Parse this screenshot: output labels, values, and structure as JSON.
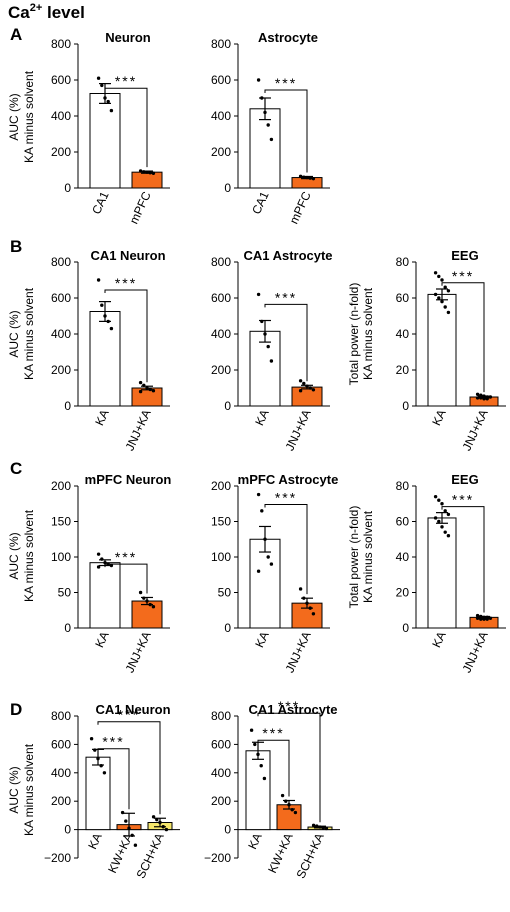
{
  "figure": {
    "title": "Ca",
    "title_sup": "2+",
    "title_suffix": " level"
  },
  "colors": {
    "kA": "#ffffff",
    "treated": "#f36b1c",
    "sch": "#f5e66b",
    "stroke": "#000000"
  },
  "sections": [
    {
      "label": "A",
      "ylabel1": "AUC (%)",
      "ylabel2": "KA minus solvent"
    },
    {
      "label": "B",
      "ylabel1": "AUC (%)",
      "ylabel2": "KA minus solvent"
    },
    {
      "label": "C",
      "ylabel1": "AUC (%)",
      "ylabel2": "KA minus solvent"
    },
    {
      "label": "D",
      "ylabel1": "AUC (%)",
      "ylabel2": "KA minus solvent"
    }
  ],
  "chart_data": [
    {
      "id": "A1",
      "type": "bar",
      "title": "Neuron",
      "categories": [
        "CA1",
        "mPFC"
      ],
      "colors": [
        "#ffffff",
        "#f36b1c"
      ],
      "values": [
        525,
        88
      ],
      "errors": [
        55,
        6
      ],
      "ylim": [
        0,
        800
      ],
      "yticks": [
        0,
        200,
        400,
        600,
        800
      ],
      "points": [
        [
          610,
          570,
          500,
          480,
          430
        ],
        [
          95,
          90,
          88,
          85,
          82
        ]
      ],
      "sig": [
        {
          "from": 0,
          "to": 1,
          "label": "***"
        }
      ]
    },
    {
      "id": "A2",
      "type": "bar",
      "title": "Astrocyte",
      "categories": [
        "CA1",
        "mPFC"
      ],
      "colors": [
        "#ffffff",
        "#f36b1c"
      ],
      "values": [
        440,
        58
      ],
      "errors": [
        60,
        6
      ],
      "ylim": [
        0,
        800
      ],
      "yticks": [
        0,
        200,
        400,
        600,
        800
      ],
      "points": [
        [
          600,
          500,
          420,
          350,
          270
        ],
        [
          65,
          60,
          58,
          55,
          52
        ]
      ],
      "sig": [
        {
          "from": 0,
          "to": 1,
          "label": "***"
        }
      ]
    },
    {
      "id": "B1",
      "type": "bar",
      "title": "CA1 Neuron",
      "categories": [
        "KA",
        "JNJ+KA"
      ],
      "colors": [
        "#ffffff",
        "#f36b1c"
      ],
      "values": [
        525,
        100
      ],
      "errors": [
        55,
        10
      ],
      "ylim": [
        0,
        800
      ],
      "yticks": [
        0,
        200,
        400,
        600,
        800
      ],
      "points": [
        [
          700,
          560,
          500,
          470,
          430
        ],
        [
          130,
          115,
          100,
          92,
          85,
          80
        ]
      ],
      "sig": [
        {
          "from": 0,
          "to": 1,
          "label": "***"
        }
      ]
    },
    {
      "id": "B2",
      "type": "bar",
      "title": "CA1 Astrocyte",
      "categories": [
        "KA",
        "JNJ+KA"
      ],
      "colors": [
        "#ffffff",
        "#f36b1c"
      ],
      "values": [
        415,
        105
      ],
      "errors": [
        60,
        10
      ],
      "ylim": [
        0,
        800
      ],
      "yticks": [
        0,
        200,
        400,
        600,
        800
      ],
      "points": [
        [
          620,
          470,
          400,
          330,
          250
        ],
        [
          140,
          125,
          110,
          100,
          90,
          85
        ]
      ],
      "sig": [
        {
          "from": 0,
          "to": 1,
          "label": "***"
        }
      ]
    },
    {
      "id": "B3",
      "type": "bar",
      "title": "EEG",
      "categories": [
        "KA",
        "JNJ+KA"
      ],
      "colors": [
        "#ffffff",
        "#f36b1c"
      ],
      "ylabel1": "Total power (n-fold)",
      "ylabel2": "KA minus solvent",
      "values": [
        62,
        5
      ],
      "errors": [
        3,
        0.5
      ],
      "ylim": [
        0,
        80
      ],
      "yticks": [
        0,
        20,
        40,
        60,
        80
      ],
      "points": [
        [
          74,
          72,
          70,
          66,
          64,
          62,
          60,
          58,
          55,
          52
        ],
        [
          6.5,
          6,
          5.5,
          5,
          5,
          4.5,
          4.5,
          4,
          4
        ]
      ],
      "sig": [
        {
          "from": 0,
          "to": 1,
          "label": "***"
        }
      ]
    },
    {
      "id": "C1",
      "type": "bar",
      "title": "mPFC Neuron",
      "categories": [
        "KA",
        "JNJ+KA"
      ],
      "colors": [
        "#ffffff",
        "#f36b1c"
      ],
      "values": [
        92,
        38
      ],
      "errors": [
        4,
        5
      ],
      "ylim": [
        0,
        200
      ],
      "yticks": [
        0,
        50,
        100,
        150,
        200
      ],
      "points": [
        [
          104,
          97,
          92,
          90,
          88,
          86
        ],
        [
          50,
          42,
          38,
          33,
          30
        ]
      ],
      "sig": [
        {
          "from": 0,
          "to": 1,
          "label": "***"
        }
      ]
    },
    {
      "id": "C2",
      "type": "bar",
      "title": "mPFC Astrocyte",
      "categories": [
        "KA",
        "JNJ+KA"
      ],
      "colors": [
        "#ffffff",
        "#f36b1c"
      ],
      "values": [
        125,
        35
      ],
      "errors": [
        18,
        7
      ],
      "ylim": [
        0,
        200
      ],
      "yticks": [
        0,
        50,
        100,
        150,
        200
      ],
      "points": [
        [
          188,
          165,
          125,
          100,
          90,
          80
        ],
        [
          55,
          42,
          35,
          28,
          20
        ]
      ],
      "sig": [
        {
          "from": 0,
          "to": 1,
          "label": "***"
        }
      ]
    },
    {
      "id": "C3",
      "type": "bar",
      "title": "EEG",
      "categories": [
        "KA",
        "JNJ+KA"
      ],
      "colors": [
        "#ffffff",
        "#f36b1c"
      ],
      "ylabel1": "Total power (n-fold)",
      "ylabel2": "KA minus solvent",
      "values": [
        62,
        6
      ],
      "errors": [
        3,
        0.5
      ],
      "ylim": [
        0,
        80
      ],
      "yticks": [
        0,
        20,
        40,
        60,
        80
      ],
      "points": [
        [
          74,
          72,
          70,
          66,
          64,
          62,
          60,
          57,
          54,
          52
        ],
        [
          7,
          6.5,
          6,
          6,
          5.5,
          5.5,
          5,
          5,
          5
        ]
      ],
      "sig": [
        {
          "from": 0,
          "to": 1,
          "label": "***"
        }
      ]
    },
    {
      "id": "D1",
      "type": "bar",
      "title": "CA1 Neuron",
      "categories": [
        "KA",
        "KW+KA",
        "SCH+KA"
      ],
      "colors": [
        "#ffffff",
        "#f36b1c",
        "#f5e66b"
      ],
      "values": [
        510,
        35,
        50
      ],
      "errors": [
        55,
        80,
        30
      ],
      "ylim": [
        -200,
        800
      ],
      "yticks": [
        -200,
        0,
        200,
        400,
        600,
        800
      ],
      "points": [
        [
          640,
          560,
          500,
          450,
          400
        ],
        [
          120,
          60,
          10,
          -40,
          -110
        ],
        [
          90,
          70,
          50,
          20,
          0
        ]
      ],
      "sig": [
        {
          "from": 0,
          "to": 1,
          "label": "***"
        },
        {
          "from": 0,
          "to": 2,
          "label": "***"
        }
      ]
    },
    {
      "id": "D2",
      "type": "bar",
      "title": "CA1 Astrocyte",
      "categories": [
        "KA",
        "KW+KA",
        "SCH+KA"
      ],
      "colors": [
        "#ffffff",
        "#f36b1c",
        "#f5e66b"
      ],
      "values": [
        555,
        175,
        18
      ],
      "errors": [
        60,
        30,
        6
      ],
      "ylim": [
        -200,
        800
      ],
      "yticks": [
        -200,
        0,
        200,
        400,
        600,
        800
      ],
      "points": [
        [
          700,
          600,
          530,
          450,
          360
        ],
        [
          240,
          200,
          175,
          140,
          120
        ],
        [
          30,
          25,
          18,
          12,
          8
        ]
      ],
      "sig": [
        {
          "from": 0,
          "to": 1,
          "label": "***"
        },
        {
          "from": 0,
          "to": 2,
          "label": "***"
        }
      ]
    }
  ]
}
